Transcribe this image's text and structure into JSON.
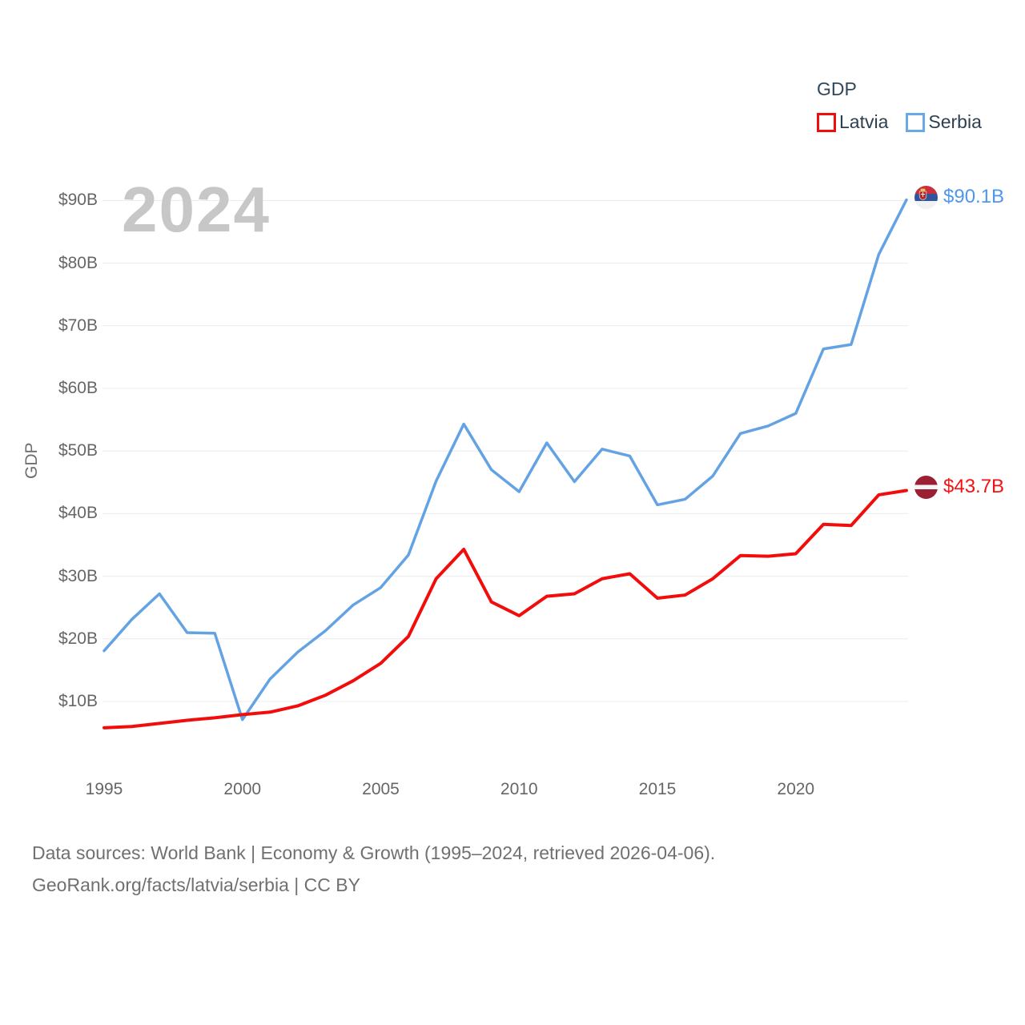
{
  "legend": {
    "title": "GDP",
    "items": [
      {
        "label": "Latvia",
        "color": "#f20d0d"
      },
      {
        "label": "Serbia",
        "color": "#6aa9e9"
      }
    ]
  },
  "watermark": "2024",
  "end_labels": {
    "serbia": {
      "text": "$90.1B",
      "icon": "serbia-flag-icon",
      "text_color": "#4d97ec"
    },
    "latvia": {
      "text": "$43.7B",
      "icon": "latvia-flag-icon",
      "text_color": "#f31212"
    }
  },
  "flag_colors": {
    "latvia": {
      "maroon": "#9c2033",
      "white": "#f5f5f5"
    },
    "serbia": {
      "red": "#cc2e3c",
      "blue": "#30549e",
      "white": "#f2f2f2"
    }
  },
  "footer": {
    "line1": "Data sources: World Bank | Economy & Growth (1995–2024, retrieved 2026-04-06).",
    "line2": "GeoRank.org/facts/latvia/serbia | CC BY"
  },
  "chart_data": {
    "type": "line",
    "title": "GDP",
    "ylabel": "GDP",
    "xlabel": "",
    "grid": "horizontal",
    "legend_position": "top-right",
    "ylim": [
      0,
      95
    ],
    "x": [
      1995,
      1996,
      1997,
      1998,
      1999,
      2000,
      2001,
      2002,
      2003,
      2004,
      2005,
      2006,
      2007,
      2008,
      2009,
      2010,
      2011,
      2012,
      2013,
      2014,
      2015,
      2016,
      2017,
      2018,
      2019,
      2020,
      2021,
      2022,
      2023,
      2024
    ],
    "series": [
      {
        "name": "Latvia",
        "color": "#f20d0d",
        "values": [
          5.8,
          6.0,
          6.5,
          7.0,
          7.4,
          7.9,
          8.3,
          9.3,
          11.0,
          13.3,
          16.1,
          20.4,
          29.6,
          34.3,
          25.9,
          23.7,
          26.8,
          27.2,
          29.6,
          30.4,
          26.5,
          27.0,
          29.6,
          33.3,
          33.2,
          33.6,
          38.3,
          38.1,
          43.0,
          43.7
        ]
      },
      {
        "name": "Serbia",
        "color": "#64a3e3",
        "values": [
          18.1,
          23.1,
          27.2,
          21.0,
          20.9,
          7.1,
          13.6,
          17.9,
          21.3,
          25.4,
          28.2,
          33.4,
          45.2,
          54.3,
          47.0,
          43.5,
          51.3,
          45.1,
          50.3,
          49.2,
          41.4,
          42.3,
          46.0,
          52.8,
          54.0,
          56.0,
          66.3,
          67.0,
          81.4,
          90.1
        ]
      }
    ],
    "y_ticks": [
      {
        "value": 10,
        "label": "$10B"
      },
      {
        "value": 20,
        "label": "$20B"
      },
      {
        "value": 30,
        "label": "$30B"
      },
      {
        "value": 40,
        "label": "$40B"
      },
      {
        "value": 50,
        "label": "$50B"
      },
      {
        "value": 60,
        "label": "$60B"
      },
      {
        "value": 70,
        "label": "$70B"
      },
      {
        "value": 80,
        "label": "$80B"
      },
      {
        "value": 90,
        "label": "$90B"
      }
    ],
    "x_ticks": [
      {
        "value": 1995,
        "label": "1995"
      },
      {
        "value": 2000,
        "label": "2000"
      },
      {
        "value": 2005,
        "label": "2005"
      },
      {
        "value": 2010,
        "label": "2010"
      },
      {
        "value": 2015,
        "label": "2015"
      },
      {
        "value": 2020,
        "label": "2020"
      }
    ]
  }
}
